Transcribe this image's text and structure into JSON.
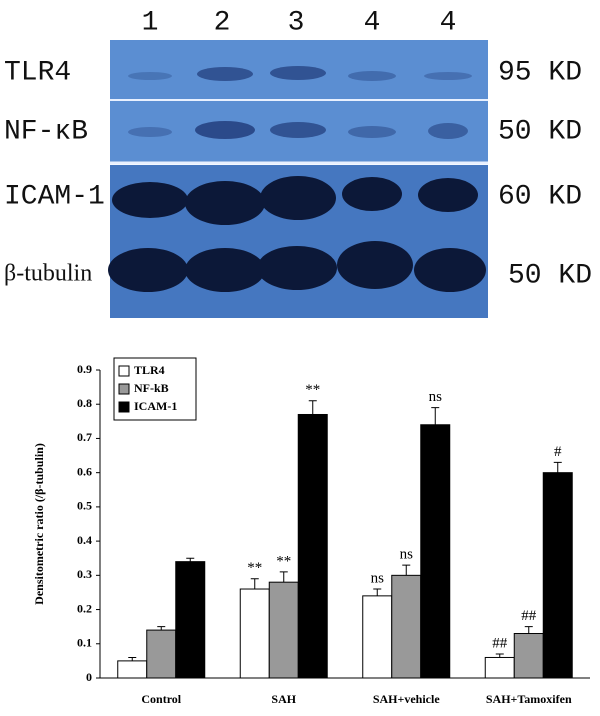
{
  "blot": {
    "lanes": [
      "1",
      "2",
      "3",
      "4",
      "4"
    ],
    "rows": [
      {
        "label": "TLR4",
        "size": "95 KD"
      },
      {
        "label": "NF-κB",
        "size": "50 KD"
      },
      {
        "label": "ICAM-1",
        "size": "60 KD"
      },
      {
        "label": "β-tubulin",
        "size": "50 KD"
      }
    ]
  },
  "chart_data": {
    "type": "bar",
    "y_label": "Densitometric ratio (/β-tubulin)",
    "categories": [
      "Control",
      "SAH",
      "SAH+vehicle",
      "SAH+Tamoxifen"
    ],
    "series": [
      {
        "name": "TLR4",
        "color": "#ffffff",
        "values": [
          0.05,
          0.26,
          0.24,
          0.06
        ],
        "errors": [
          0.01,
          0.03,
          0.02,
          0.01
        ],
        "annotations": [
          null,
          "**",
          "ns",
          "##"
        ]
      },
      {
        "name": "NF-kB",
        "color": "#999999",
        "values": [
          0.14,
          0.28,
          0.3,
          0.13
        ],
        "errors": [
          0.01,
          0.03,
          0.03,
          0.02
        ],
        "annotations": [
          null,
          "**",
          "ns",
          "##"
        ]
      },
      {
        "name": "ICAM-1",
        "color": "#000000",
        "values": [
          0.34,
          0.77,
          0.74,
          0.6
        ],
        "errors": [
          0.01,
          0.04,
          0.05,
          0.03
        ],
        "annotations": [
          null,
          "**",
          "ns",
          "#"
        ]
      }
    ],
    "ylim": [
      0,
      0.9
    ],
    "yticks": [
      0,
      0.1,
      0.2,
      0.3,
      0.4,
      0.5,
      0.6,
      0.7,
      0.8,
      0.9
    ],
    "legend": "upper-left"
  }
}
